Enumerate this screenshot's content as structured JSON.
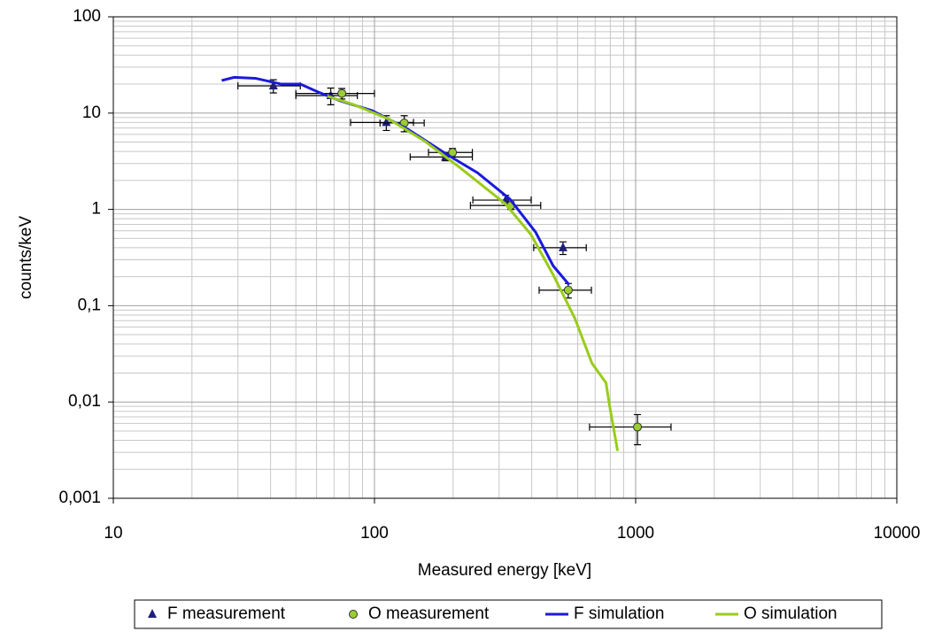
{
  "chart_data": {
    "type": "scatter-line",
    "x_label": "Measured energy [keV]",
    "y_label": "counts/keV",
    "xlim": [
      10,
      10000
    ],
    "ylim": [
      0.001,
      100
    ],
    "xticks": [
      10,
      100,
      1000,
      10000
    ],
    "yticks": [
      {
        "value": 0.001,
        "label": "0,001"
      },
      {
        "value": 0.01,
        "label": "0,01"
      },
      {
        "value": 0.1,
        "label": "0,1"
      },
      1,
      10,
      100
    ],
    "x_scale": "log",
    "y_scale": "log",
    "grid": true,
    "legend": "bottom",
    "series": [
      {
        "name": "F measurement",
        "kind": "markers",
        "marker": "triangle",
        "color": "#1f1f7a",
        "x": [
          41,
          68,
          111,
          187,
          318,
          527
        ],
        "values": [
          19.2,
          15.2,
          8.0,
          3.5,
          1.25,
          0.4
        ],
        "x_err": [
          11,
          18,
          30,
          50,
          80,
          120
        ],
        "y_err": [
          3,
          3,
          1.4,
          0.3,
          0.15,
          0.06
        ]
      },
      {
        "name": "O measurement",
        "kind": "markers",
        "marker": "circle",
        "color": "#9acd32",
        "x": [
          75,
          130,
          199,
          333,
          552,
          1016
        ],
        "values": [
          16,
          7.9,
          3.9,
          1.1,
          0.145,
          0.0055
        ],
        "x_err": [
          25,
          25,
          38,
          100,
          125,
          350
        ],
        "y_err": [
          2,
          1.5,
          0.4,
          0.1,
          0.025,
          0.0019
        ]
      },
      {
        "name": "F simulation",
        "kind": "line",
        "color": "#1a1adc",
        "x": [
          26,
          29,
          35,
          44,
          52,
          61,
          74,
          98,
          133,
          190,
          248,
          330,
          414,
          483,
          556
        ],
        "values": [
          21.8,
          23.5,
          23,
          20,
          20,
          16.5,
          13.4,
          10.6,
          6.9,
          3.7,
          2.4,
          1.28,
          0.58,
          0.26,
          0.165
        ]
      },
      {
        "name": "O simulation",
        "kind": "line",
        "color": "#99cc1a",
        "x": [
          66,
          83,
          114,
          156,
          213,
          316,
          397,
          483,
          585,
          680,
          770,
          796,
          853
        ],
        "values": [
          15,
          12.3,
          8.6,
          5.1,
          2.7,
          1.15,
          0.55,
          0.21,
          0.074,
          0.0253,
          0.0158,
          0.0089,
          0.0031
        ]
      }
    ]
  }
}
